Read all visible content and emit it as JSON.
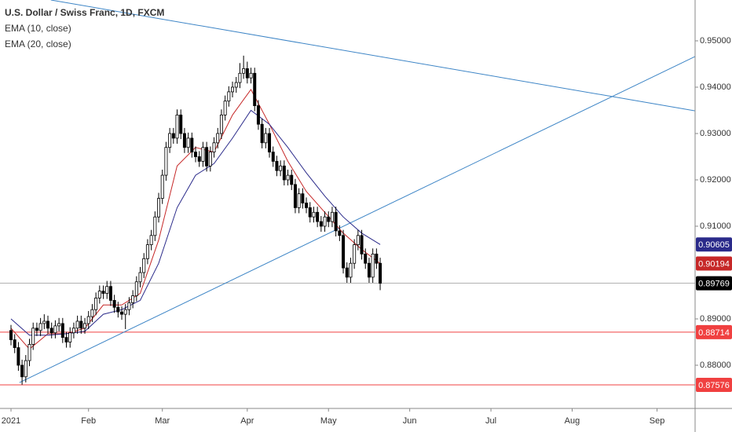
{
  "chart_data": {
    "type": "candlestick",
    "title": "U.S. Dollar / Swiss Franc, 1D, FXCM",
    "xlim": [
      -2.98,
      185.3
    ],
    "ylim": [
      0.87068,
      0.95881
    ],
    "xticks": [
      {
        "value": 0,
        "label": "2021"
      },
      {
        "value": 21,
        "label": "Feb"
      },
      {
        "value": 41,
        "label": "Mar"
      },
      {
        "value": 64,
        "label": "Apr"
      },
      {
        "value": 86,
        "label": "May"
      },
      {
        "value": 108,
        "label": "Jun"
      },
      {
        "value": 130,
        "label": "Jul"
      },
      {
        "value": 152,
        "label": "Aug"
      },
      {
        "value": 175,
        "label": "Sep"
      }
    ],
    "yticks": [
      {
        "value": 0.88,
        "label": "0.88000"
      },
      {
        "value": 0.89,
        "label": "0.89000"
      },
      {
        "value": 0.91,
        "label": "0.91000"
      },
      {
        "value": 0.92,
        "label": "0.92000"
      },
      {
        "value": 0.93,
        "label": "0.93000"
      },
      {
        "value": 0.94,
        "label": "0.94000"
      },
      {
        "value": 0.95,
        "label": "0.95000"
      }
    ],
    "up_color": "#ffffff",
    "down_color": "#000000",
    "open": [
      0.8875,
      0.8855,
      0.8838,
      0.88,
      0.8775,
      0.881,
      0.8845,
      0.888,
      0.8875,
      0.889,
      0.8895,
      0.888,
      0.887,
      0.8885,
      0.889,
      0.886,
      0.885,
      0.887,
      0.888,
      0.8895,
      0.888,
      0.889,
      0.8905,
      0.892,
      0.8945,
      0.896,
      0.8955,
      0.897,
      0.894,
      0.8925,
      0.8915,
      0.891,
      0.892,
      0.8935,
      0.895,
      0.898,
      0.9,
      0.903,
      0.906,
      0.908,
      0.912,
      0.916,
      0.921,
      0.927,
      0.93,
      0.929,
      0.934,
      0.93,
      0.927,
      0.929,
      0.926,
      0.925,
      0.924,
      0.927,
      0.923,
      0.926,
      0.928,
      0.93,
      0.934,
      0.937,
      0.939,
      0.94,
      0.941,
      0.943,
      0.944,
      0.942,
      0.943,
      0.936,
      0.932,
      0.928,
      0.93,
      0.926,
      0.924,
      0.922,
      0.923,
      0.92,
      0.921,
      0.919,
      0.914,
      0.917,
      0.915,
      0.914,
      0.912,
      0.913,
      0.911,
      0.91,
      0.912,
      0.911,
      0.913,
      0.909,
      0.908,
      0.901,
      0.899,
      0.902,
      0.906,
      0.908,
      0.904,
      0.902,
      0.899,
      0.904,
      0.902
    ],
    "high": [
      0.8887,
      0.8867,
      0.885,
      0.8812,
      0.8822,
      0.8857,
      0.8892,
      0.8892,
      0.8902,
      0.891,
      0.8907,
      0.8892,
      0.8897,
      0.8902,
      0.8902,
      0.8872,
      0.8882,
      0.8892,
      0.8907,
      0.8907,
      0.8902,
      0.8917,
      0.8932,
      0.8957,
      0.8972,
      0.8972,
      0.8982,
      0.8982,
      0.8952,
      0.8937,
      0.8927,
      0.8932,
      0.8947,
      0.8962,
      0.8992,
      0.9012,
      0.9042,
      0.9072,
      0.9092,
      0.9132,
      0.9172,
      0.9222,
      0.9282,
      0.9312,
      0.9312,
      0.9352,
      0.9352,
      0.9312,
      0.9302,
      0.9302,
      0.9272,
      0.9262,
      0.9282,
      0.9282,
      0.9272,
      0.9292,
      0.9312,
      0.9352,
      0.9382,
      0.9402,
      0.9412,
      0.9422,
      0.9452,
      0.9468,
      0.9455,
      0.9442,
      0.9442,
      0.9372,
      0.9332,
      0.9312,
      0.9312,
      0.9272,
      0.9252,
      0.9242,
      0.9242,
      0.9222,
      0.9222,
      0.9202,
      0.9182,
      0.9182,
      0.9162,
      0.9152,
      0.9142,
      0.9142,
      0.9122,
      0.9132,
      0.9132,
      0.9142,
      0.9142,
      0.9102,
      0.9092,
      0.9022,
      0.9032,
      0.9072,
      0.9092,
      0.9092,
      0.9052,
      0.9032,
      0.9052,
      0.9052,
      0.9032
    ],
    "low": [
      0.8843,
      0.8826,
      0.8788,
      0.8758,
      0.8763,
      0.8798,
      0.8833,
      0.8863,
      0.8863,
      0.8878,
      0.8868,
      0.8858,
      0.8858,
      0.8873,
      0.8848,
      0.8838,
      0.8838,
      0.8858,
      0.8868,
      0.8868,
      0.8868,
      0.8878,
      0.8893,
      0.8908,
      0.8933,
      0.8943,
      0.8943,
      0.8928,
      0.8913,
      0.8903,
      0.8898,
      0.8878,
      0.8908,
      0.8923,
      0.8938,
      0.8968,
      0.8988,
      0.9018,
      0.9048,
      0.9068,
      0.9108,
      0.9148,
      0.9198,
      0.9258,
      0.9278,
      0.9278,
      0.9288,
      0.9258,
      0.9258,
      0.9248,
      0.9238,
      0.9228,
      0.9228,
      0.9218,
      0.9218,
      0.9248,
      0.9268,
      0.9288,
      0.9328,
      0.9358,
      0.9378,
      0.9388,
      0.9398,
      0.9418,
      0.9408,
      0.9408,
      0.9348,
      0.9308,
      0.9268,
      0.9268,
      0.9248,
      0.9228,
      0.9208,
      0.9208,
      0.9188,
      0.9188,
      0.9178,
      0.9128,
      0.9128,
      0.9138,
      0.9128,
      0.9108,
      0.9108,
      0.9098,
      0.9088,
      0.9088,
      0.9098,
      0.9098,
      0.9078,
      0.9068,
      0.8998,
      0.8978,
      0.8978,
      0.9008,
      0.9048,
      0.9028,
      0.9008,
      0.8978,
      0.8978,
      0.9008,
      0.8962
    ],
    "close": [
      0.8855,
      0.8838,
      0.88,
      0.8775,
      0.881,
      0.8845,
      0.888,
      0.8875,
      0.889,
      0.8895,
      0.888,
      0.887,
      0.8885,
      0.889,
      0.886,
      0.885,
      0.887,
      0.888,
      0.8895,
      0.888,
      0.889,
      0.8905,
      0.892,
      0.8945,
      0.896,
      0.8955,
      0.897,
      0.894,
      0.8925,
      0.8915,
      0.891,
      0.892,
      0.8935,
      0.895,
      0.898,
      0.9,
      0.903,
      0.906,
      0.908,
      0.912,
      0.916,
      0.921,
      0.927,
      0.93,
      0.929,
      0.934,
      0.93,
      0.927,
      0.929,
      0.926,
      0.925,
      0.924,
      0.927,
      0.923,
      0.926,
      0.928,
      0.93,
      0.934,
      0.937,
      0.939,
      0.94,
      0.941,
      0.943,
      0.944,
      0.942,
      0.943,
      0.936,
      0.932,
      0.928,
      0.93,
      0.926,
      0.924,
      0.922,
      0.923,
      0.92,
      0.921,
      0.919,
      0.914,
      0.917,
      0.915,
      0.914,
      0.912,
      0.913,
      0.911,
      0.91,
      0.912,
      0.911,
      0.913,
      0.909,
      0.908,
      0.901,
      0.899,
      0.902,
      0.906,
      0.908,
      0.904,
      0.902,
      0.899,
      0.904,
      0.902,
      0.89769
    ],
    "current_color": "#000000",
    "series": [
      {
        "name": "EMA (10, close)",
        "color": "#c62828",
        "x": [
          0,
          5,
          10,
          15,
          20,
          25,
          30,
          35,
          40,
          45,
          50,
          55,
          60,
          65,
          70,
          75,
          80,
          85,
          90,
          95,
          100
        ],
        "values": [
          0.888,
          0.8835,
          0.8868,
          0.8868,
          0.888,
          0.893,
          0.893,
          0.8955,
          0.907,
          0.923,
          0.927,
          0.926,
          0.934,
          0.9395,
          0.932,
          0.924,
          0.9175,
          0.913,
          0.9085,
          0.905,
          0.90194
        ]
      },
      {
        "name": "EMA (20, close)",
        "color": "#2a2a8a",
        "x": [
          0,
          5,
          10,
          15,
          20,
          25,
          30,
          35,
          40,
          45,
          50,
          55,
          60,
          65,
          70,
          75,
          80,
          85,
          90,
          95,
          100
        ],
        "values": [
          0.89,
          0.8865,
          0.8865,
          0.8868,
          0.8873,
          0.891,
          0.892,
          0.894,
          0.902,
          0.914,
          0.921,
          0.9235,
          0.929,
          0.935,
          0.932,
          0.927,
          0.9215,
          0.9165,
          0.912,
          0.9085,
          0.90605
        ]
      }
    ],
    "trendlines": [
      {
        "color": "#3d85c6",
        "x": [
          10.8,
          185.3
        ],
        "y": [
          0.95881,
          0.9349
        ]
      },
      {
        "color": "#3d85c6",
        "x": [
          2.3,
          185.3
        ],
        "y": [
          0.87627,
          0.94661
        ]
      }
    ],
    "hlines": [
      {
        "value": 0.88714,
        "color": "#f04040"
      },
      {
        "value": 0.87576,
        "color": "#f04040"
      }
    ]
  }
}
